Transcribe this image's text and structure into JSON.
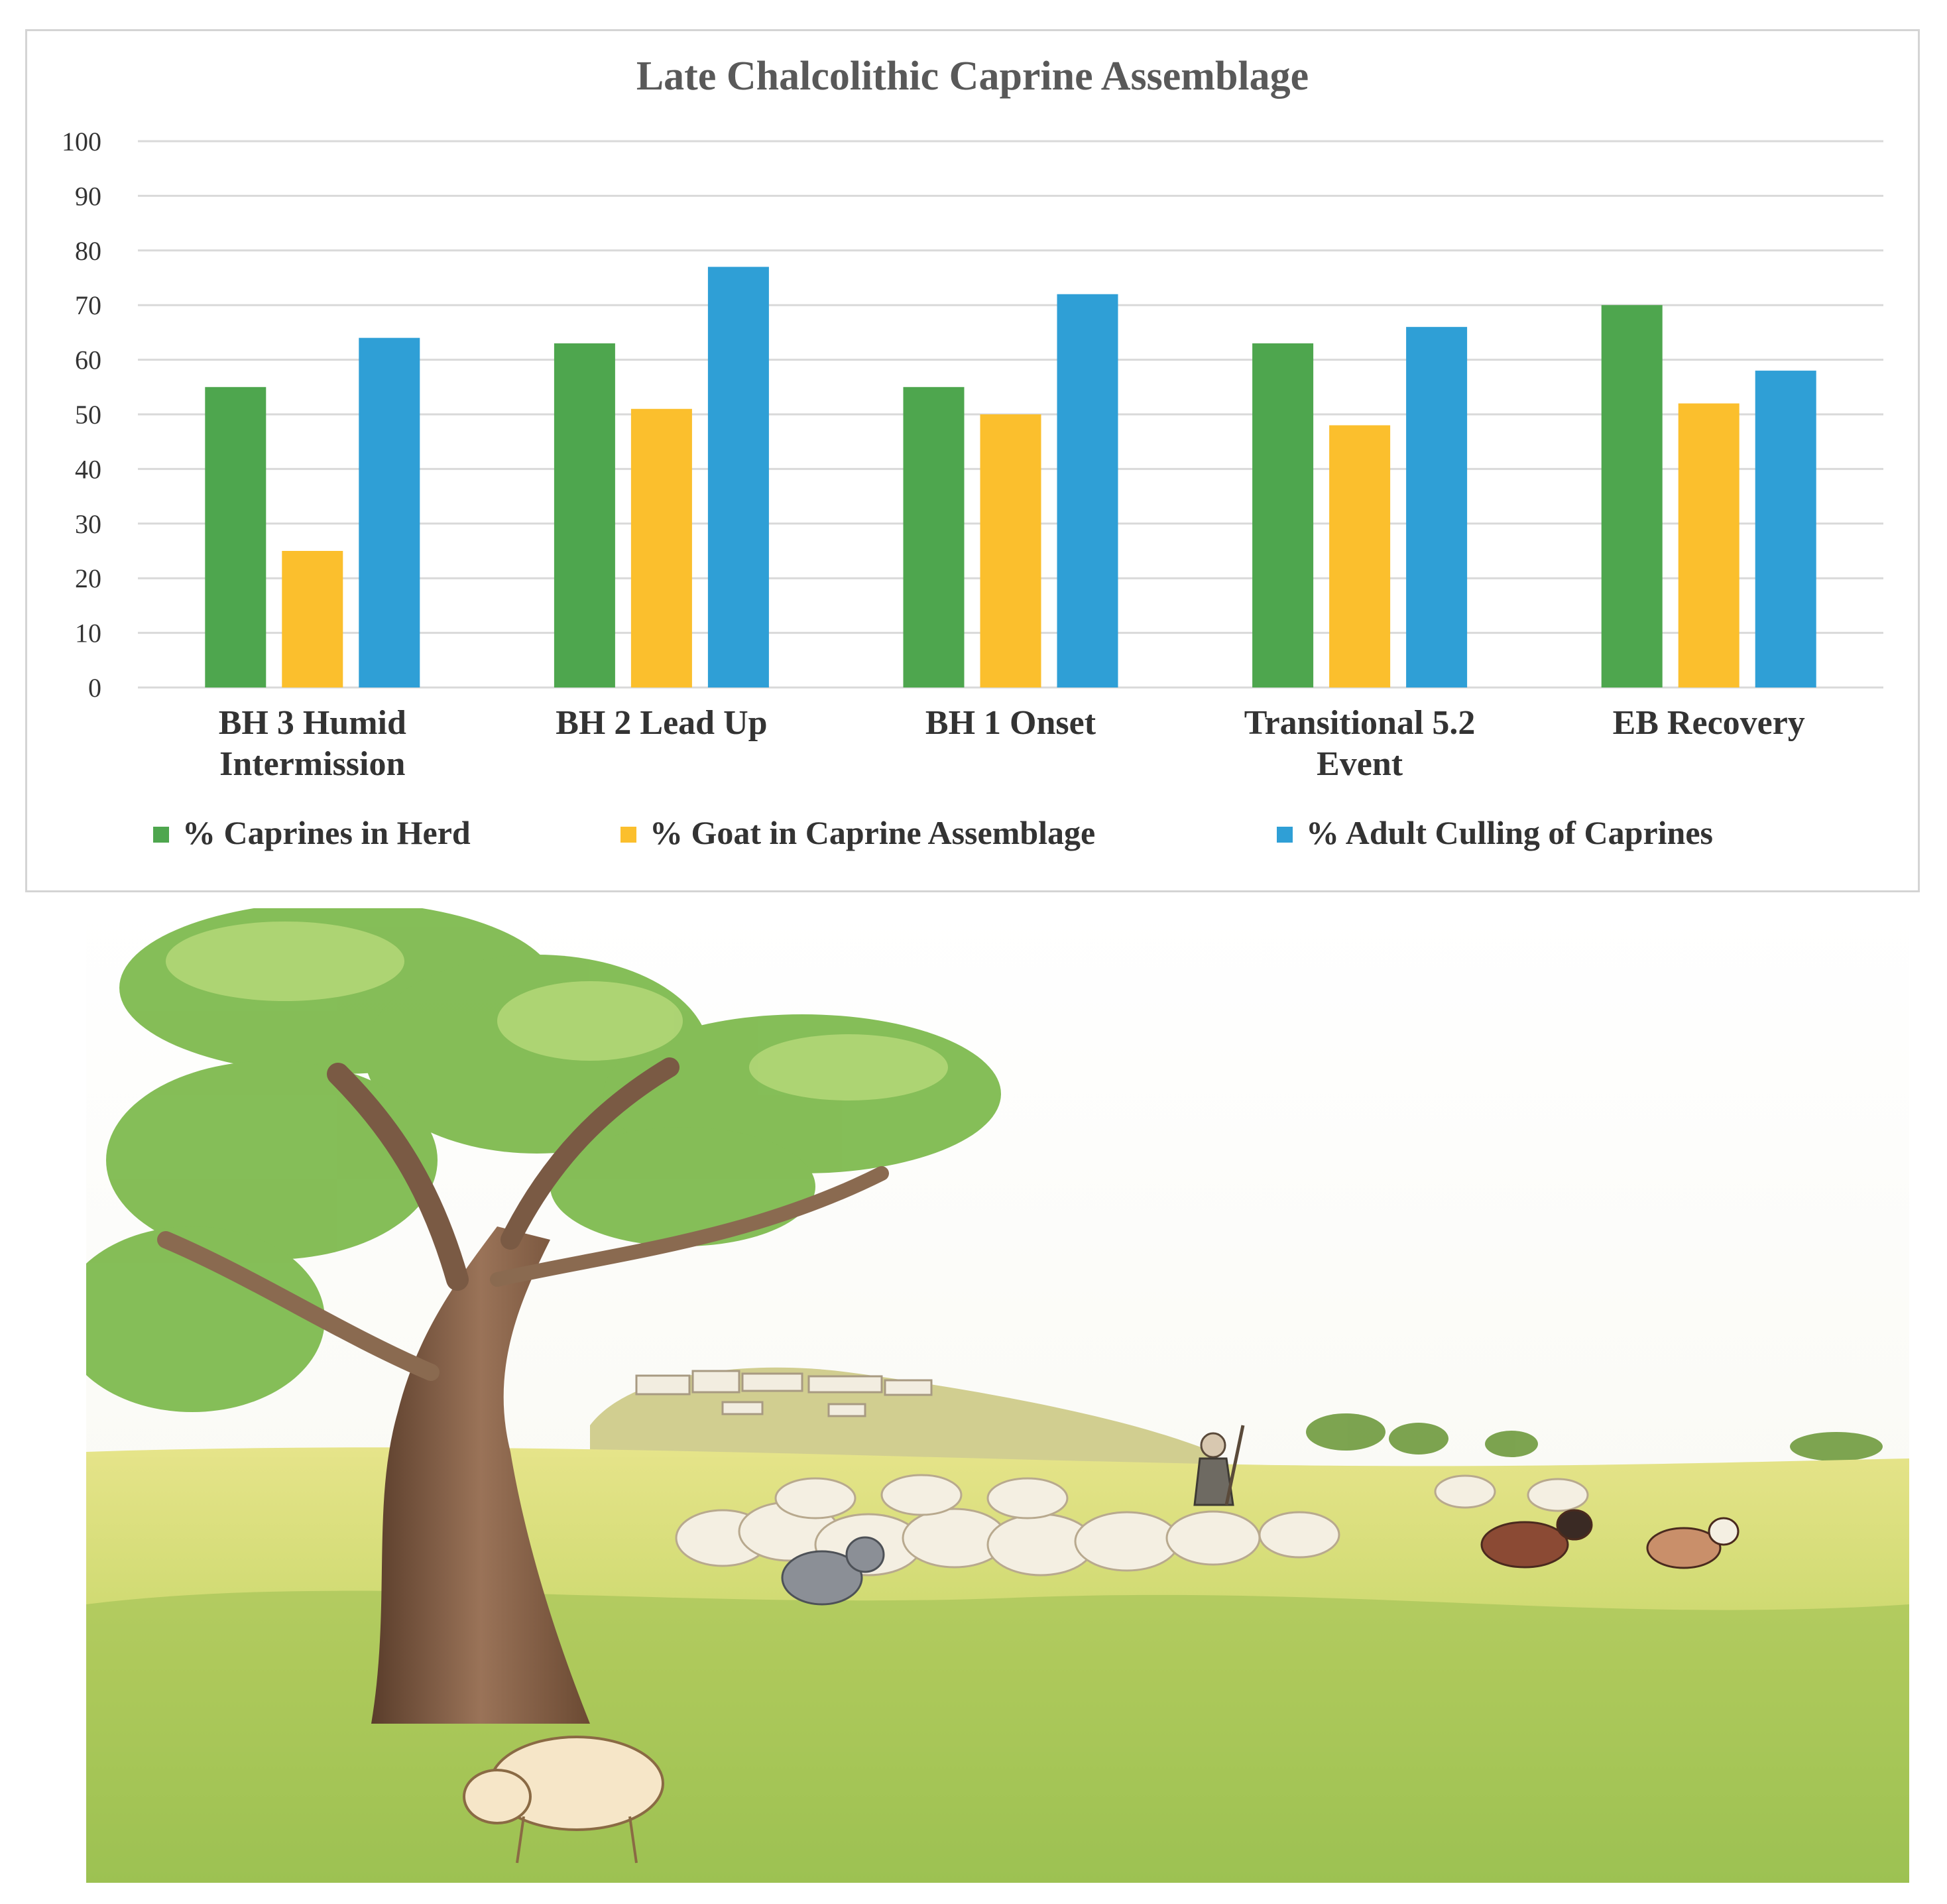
{
  "chart_data": {
    "type": "bar",
    "title": "Late Chalcolithic Caprine Assemblage",
    "xlabel": "",
    "ylabel": "",
    "ylim": [
      0,
      100
    ],
    "yticks": [
      0,
      10,
      20,
      30,
      40,
      50,
      60,
      70,
      80,
      90,
      100
    ],
    "grid": true,
    "legend_position": "bottom",
    "categories": [
      [
        "BH 3 Humid",
        "Intermission"
      ],
      [
        "BH 2 Lead Up"
      ],
      [
        "BH 1 Onset"
      ],
      [
        "Transitional 5.2",
        "Event"
      ],
      [
        "EB Recovery"
      ]
    ],
    "series": [
      {
        "name": "% Caprines in Herd",
        "color": "#4ea64e",
        "values": [
          55,
          63,
          55,
          63,
          70
        ]
      },
      {
        "name": "% Goat in Caprine Assemblage",
        "color": "#fbbf2d",
        "values": [
          25,
          51,
          50,
          48,
          52
        ]
      },
      {
        "name": "% Adult Culling of Caprines",
        "color": "#2f9fd6",
        "values": [
          64,
          77,
          72,
          66,
          58
        ]
      }
    ]
  },
  "illustration": {
    "subject": "watercolor-landscape-shepherd-flock"
  },
  "colors": {
    "gridline": "#d9d9d9",
    "axis_text": "#333333",
    "title": "#595959"
  }
}
